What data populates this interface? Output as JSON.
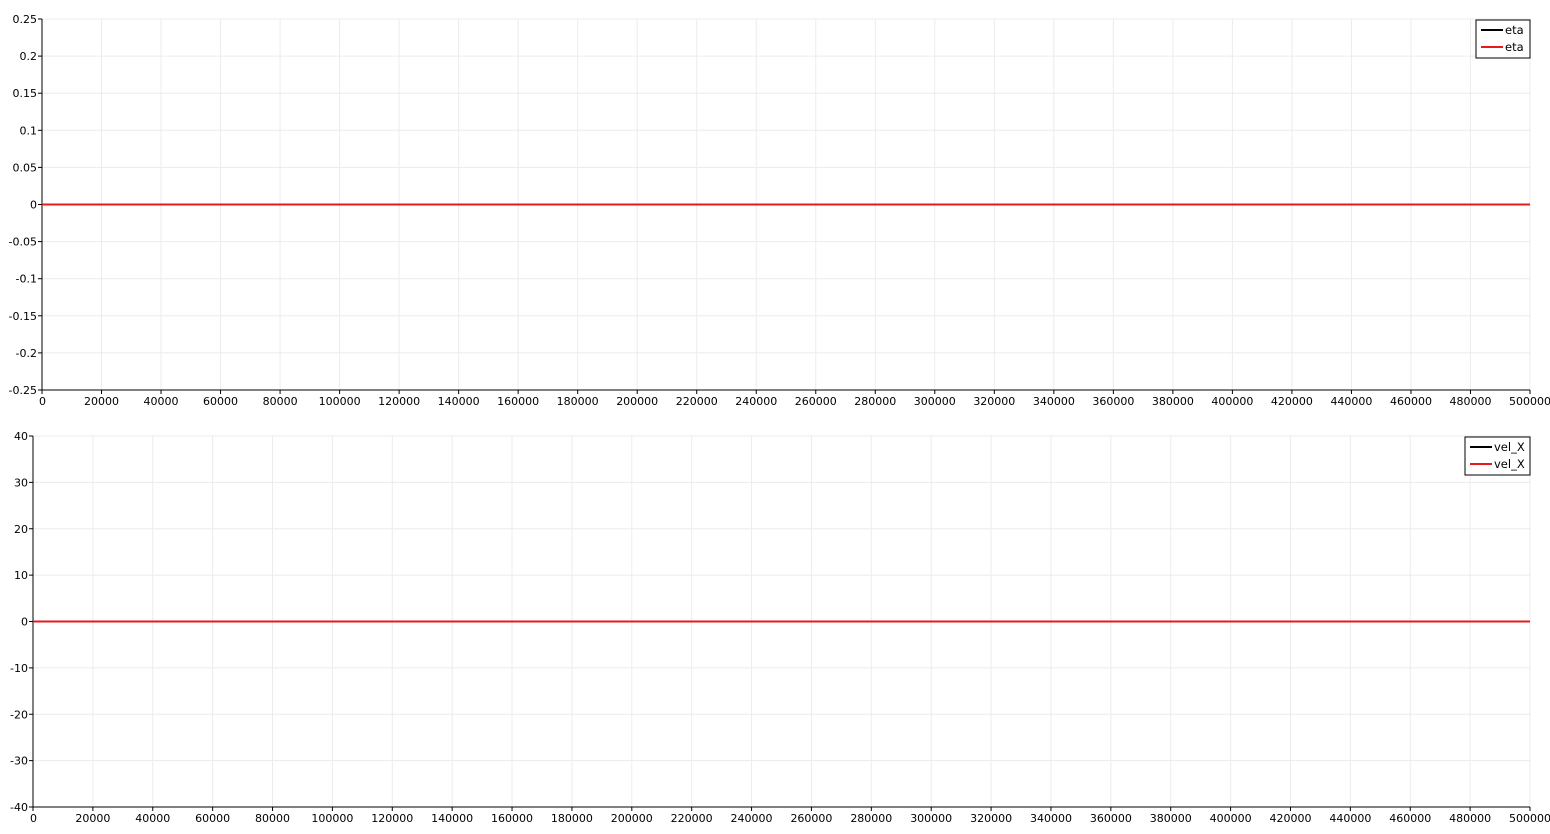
{
  "chart_data": [
    {
      "type": "line",
      "title": "",
      "xlabel": "",
      "ylabel": "",
      "xlim": [
        0,
        500000
      ],
      "ylim": [
        -0.25,
        0.25
      ],
      "x_ticks": [
        0,
        20000,
        40000,
        60000,
        80000,
        100000,
        120000,
        140000,
        160000,
        180000,
        200000,
        220000,
        240000,
        260000,
        280000,
        300000,
        320000,
        340000,
        360000,
        380000,
        400000,
        420000,
        440000,
        460000,
        480000,
        500000
      ],
      "y_ticks": [
        0.25,
        0.2,
        0.15,
        0.1,
        0.05,
        0,
        -0.05,
        -0.1,
        -0.15,
        -0.2,
        -0.25
      ],
      "grid": true,
      "legend_position": "top-right",
      "series": [
        {
          "name": "eta",
          "color": "#000000",
          "x": [
            0,
            500000
          ],
          "y": [
            0,
            0
          ]
        },
        {
          "name": "eta",
          "color": "#e41a1c",
          "x": [
            0,
            500000
          ],
          "y": [
            0,
            0
          ]
        }
      ]
    },
    {
      "type": "line",
      "title": "",
      "xlabel": "",
      "ylabel": "",
      "xlim": [
        0,
        500000
      ],
      "ylim": [
        -40,
        40
      ],
      "x_ticks": [
        0,
        20000,
        40000,
        60000,
        80000,
        100000,
        120000,
        140000,
        160000,
        180000,
        200000,
        220000,
        240000,
        260000,
        280000,
        300000,
        320000,
        340000,
        360000,
        380000,
        400000,
        420000,
        440000,
        460000,
        480000,
        500000
      ],
      "y_ticks": [
        40,
        30,
        20,
        10,
        0,
        -10,
        -20,
        -30,
        -40
      ],
      "grid": true,
      "legend_position": "top-right",
      "series": [
        {
          "name": "vel_X",
          "color": "#000000",
          "x": [
            0,
            500000
          ],
          "y": [
            0,
            0
          ]
        },
        {
          "name": "vel_X",
          "color": "#e41a1c",
          "x": [
            0,
            500000
          ],
          "y": [
            0,
            0
          ]
        }
      ]
    }
  ]
}
